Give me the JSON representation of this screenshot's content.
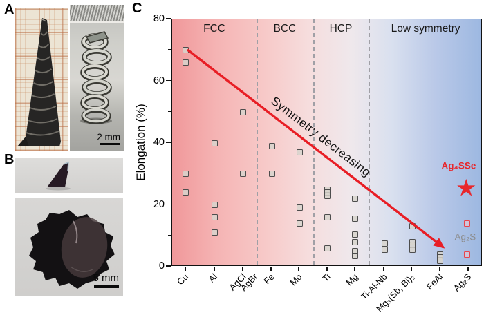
{
  "figure": {
    "panel_a": {
      "label": "A",
      "scale_bar": "2 mm"
    },
    "panel_b": {
      "label": "B",
      "scale_bar": "5 mm"
    },
    "panel_c": {
      "label": "C"
    }
  },
  "chart_data": {
    "type": "scatter",
    "title": "",
    "xlabel": "",
    "ylabel": "Elongation (%)",
    "ylim": [
      0,
      80
    ],
    "yticks_major": [
      0,
      20,
      40,
      60,
      80
    ],
    "yticks_minor": [
      10,
      30,
      50,
      70
    ],
    "grid": false,
    "legend_position": "none",
    "regions": [
      {
        "label": "FCC",
        "start_pct": 0,
        "end_pct": 27.2
      },
      {
        "label": "BCC",
        "start_pct": 27.2,
        "end_pct": 45.4
      },
      {
        "label": "HCP",
        "start_pct": 45.4,
        "end_pct": 63.3
      },
      {
        "label": "Low symmetry",
        "start_pct": 63.3,
        "end_pct": 100
      }
    ],
    "categories": [
      {
        "label": "Cu",
        "x_pct": 4.45,
        "tick": true,
        "values": [
          70,
          66,
          30,
          24
        ]
      },
      {
        "label": "Al",
        "x_pct": 13.8,
        "tick": true,
        "values": [
          40,
          20,
          16,
          11
        ]
      },
      {
        "label": "AgCl",
        "x_pct": 22.9,
        "tick": true,
        "values": [
          50,
          30
        ]
      },
      {
        "label": "AgBr",
        "x_pct": 26.7,
        "tick": false,
        "values": []
      },
      {
        "label": "Fe",
        "x_pct": 32.1,
        "tick": true,
        "values": [
          39,
          30
        ]
      },
      {
        "label": "Mo",
        "x_pct": 41.0,
        "tick": true,
        "values": [
          37,
          19,
          14
        ]
      },
      {
        "label": "Ti",
        "x_pct": 50.1,
        "tick": true,
        "values": [
          25,
          24,
          23,
          16,
          6
        ]
      },
      {
        "label": "Mg",
        "x_pct": 59.0,
        "tick": true,
        "values": [
          22,
          15.5,
          10.5,
          8,
          5,
          3.5
        ]
      },
      {
        "label": "Ti-Al-Nb",
        "x_pct": 68.4,
        "tick": true,
        "values": [
          7.5,
          5.5
        ]
      },
      {
        "label": "Mg₃(Sb, Bi)₂",
        "x_pct": 77.3,
        "tick": true,
        "values": [
          13,
          8,
          7,
          5.5
        ]
      },
      {
        "label": "FeAl",
        "x_pct": 86.4,
        "tick": true,
        "values": [
          4,
          3,
          2
        ]
      },
      {
        "label": "Ag₂S",
        "x_pct": 95.5,
        "tick": true,
        "values": []
      }
    ],
    "highlight_series": [
      {
        "name": "Ag₂S",
        "marker": "open-square-red",
        "x_pct": 95.1,
        "values": [
          14,
          4
        ],
        "label_pos": {
          "x_pct": 94.4,
          "value": 9.6
        }
      },
      {
        "name": "Ag₄SSe",
        "marker": "star-red",
        "x_pct": 94.7,
        "values": [
          25
        ],
        "label_pos": {
          "x_pct": 92.3,
          "value": 32.6
        }
      }
    ],
    "annotation": {
      "text": "Symmetry decreasing",
      "angle_deg": 37.7,
      "center": {
        "x_pct": 47.9,
        "value": 42
      }
    },
    "arrow": {
      "x1_pct": 4.9,
      "y1_value": 70.2,
      "x2_pct": 87.3,
      "y2_value": 6.3
    },
    "colors": {
      "accent_red": "#e81e25",
      "star_red": "#e8262b",
      "marker_gray_border": "#4d4d4d",
      "marker_gray_fill": "#d7d3cd",
      "marker_red_border": "#e8444c",
      "marker_red_fill": "#f4ccd4",
      "gray_label": "#8c8c8c",
      "dashed_line": "#a0a0a6",
      "bg_left": "#f0989a",
      "bg_right": "#9db8e1"
    },
    "icons": {
      "star": "★"
    }
  }
}
